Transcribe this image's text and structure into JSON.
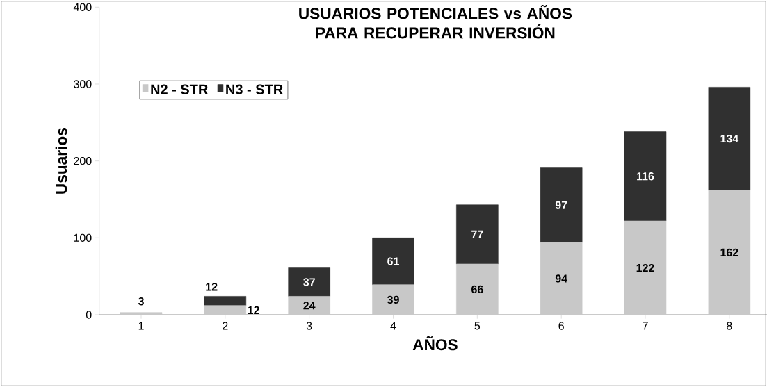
{
  "chart_data": {
    "type": "bar",
    "stacked": true,
    "title": "USUARIOS POTENCIALES  vs AÑOS PARA RECUPERAR INVERSIÓN",
    "xlabel": "AÑOS",
    "ylabel": "Usuarios",
    "categories": [
      "1",
      "2",
      "3",
      "4",
      "5",
      "6",
      "7",
      "8"
    ],
    "series": [
      {
        "name": "N2 - STR",
        "color": "#c8c8c8",
        "values": [
          3,
          12,
          24,
          39,
          66,
          94,
          122,
          162
        ],
        "value_labels": [
          "3",
          "12",
          "24",
          "39",
          "66",
          "94",
          "122",
          "162"
        ]
      },
      {
        "name": "N3 - STR",
        "color": "#303030",
        "values": [
          0,
          12,
          37,
          61,
          77,
          97,
          116,
          134
        ],
        "value_labels": [
          null,
          "12",
          "37",
          "61",
          "77",
          "97",
          "116",
          "134"
        ]
      }
    ],
    "ylim": [
      0,
      400
    ],
    "yticks": [
      0,
      100,
      200,
      300,
      400
    ],
    "legend": "top left",
    "grid": false
  }
}
